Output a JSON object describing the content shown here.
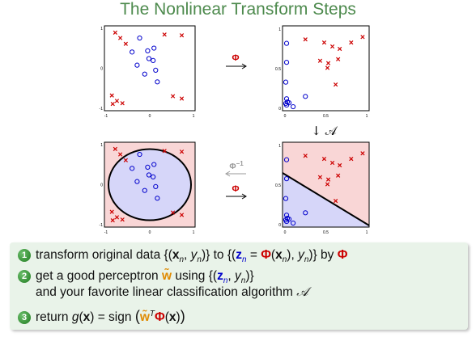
{
  "title": "The Nonlinear Transform Steps",
  "colors": {
    "title": "#4d8a4d",
    "cross": "#cc0000",
    "circle": "#0000cc",
    "pos_region": "#f9d6d6",
    "neg_region": "#d6d6f9",
    "step_badge": "#2e8b2e",
    "phi": "#cc0000",
    "tilde_w": "#e08a00"
  },
  "plots": {
    "x_space_ticks": {
      "x": [
        "-1",
        "0",
        "1"
      ],
      "y": [
        "-1",
        "0",
        "1"
      ]
    },
    "z_space_ticks": {
      "x": [
        "0",
        "0.5",
        "1"
      ],
      "y": [
        "0",
        "0.5",
        "1"
      ]
    },
    "x_data": {
      "crosses": [
        [
          -0.82,
          0.92
        ],
        [
          -0.7,
          0.78
        ],
        [
          -0.57,
          0.63
        ],
        [
          0.35,
          0.87
        ],
        [
          0.76,
          0.85
        ],
        [
          -0.9,
          -0.7
        ],
        [
          -0.78,
          -0.84
        ],
        [
          -0.65,
          -0.9
        ],
        [
          -0.88,
          -0.92
        ],
        [
          0.55,
          -0.72
        ],
        [
          0.76,
          -0.78
        ]
      ],
      "circles": [
        [
          -0.24,
          0.78
        ],
        [
          -0.42,
          0.42
        ],
        [
          -0.05,
          0.45
        ],
        [
          0.1,
          0.52
        ],
        [
          -0.02,
          0.25
        ],
        [
          0.08,
          0.2
        ],
        [
          -0.3,
          0.08
        ],
        [
          0.14,
          -0.05
        ],
        [
          -0.12,
          -0.15
        ],
        [
          0.18,
          -0.35
        ]
      ]
    },
    "z_data": {
      "crosses": [
        [
          0.25,
          0.87
        ],
        [
          0.48,
          0.83
        ],
        [
          0.58,
          0.78
        ],
        [
          0.67,
          0.75
        ],
        [
          0.81,
          0.83
        ],
        [
          0.95,
          0.9
        ],
        [
          0.65,
          0.62
        ],
        [
          0.53,
          0.57
        ],
        [
          0.43,
          0.6
        ],
        [
          0.52,
          0.51
        ],
        [
          0.62,
          0.3
        ]
      ],
      "circles": [
        [
          0.02,
          0.82
        ],
        [
          0.02,
          0.58
        ],
        [
          0.01,
          0.33
        ],
        [
          0.02,
          0.12
        ],
        [
          0.01,
          0.06
        ],
        [
          0.03,
          0.08
        ],
        [
          0.05,
          0.07
        ],
        [
          0.02,
          0.04
        ],
        [
          0.1,
          0.02
        ],
        [
          0.25,
          0.15
        ]
      ]
    },
    "ellipse": {
      "cx": 0,
      "cy": 0,
      "rx": 0.82,
      "ry": 0.82
    },
    "line": {
      "from": [
        0,
        0.63
      ],
      "to": [
        1,
        0.02
      ]
    }
  },
  "arrows": {
    "phi_top": "Φ",
    "phi_bottom": "Φ",
    "phi_inverse_base": "Φ",
    "phi_inverse_exp": "−1",
    "algorithm_down": "↓ 𝒜"
  },
  "steps": [
    {
      "number": "1",
      "text_a": "transform original data {(",
      "x_bold": "x",
      "sub_n": "n",
      "comma_y": ", ",
      "y_it": "y",
      "sub_n2": "n",
      "text_b": ")} to {(",
      "z_bold": "z",
      "sub_n3": "n",
      "eq": " = ",
      "phi": "Φ",
      "text_c": "(",
      "x_bold2": "x",
      "sub_n4": "n",
      "text_d": "), ",
      "y_it2": "y",
      "sub_n5": "n",
      "text_e": ")} by ",
      "phi2": "Φ"
    },
    {
      "number": "2",
      "text_a": "get a good perceptron ",
      "w_tilde": "w̃",
      "text_b": " using {(",
      "z_bold": "z",
      "sub_n": "n",
      "comma_y": ", ",
      "y_it": "y",
      "sub_n2": "n",
      "text_c": ")}",
      "line2": "and your favorite linear classification algorithm ",
      "algo": "𝒜"
    },
    {
      "number": "3",
      "text_a": "return ",
      "g": "g",
      "text_b": "(",
      "x_bold": "x",
      "text_c": ") = sign ",
      "lp": "(",
      "w_tilde": "w̃",
      "sup_T": "T",
      "phi": "Φ",
      "text_d": "(",
      "x_bold2": "x",
      "text_e": ")",
      "rp": ")"
    }
  ]
}
